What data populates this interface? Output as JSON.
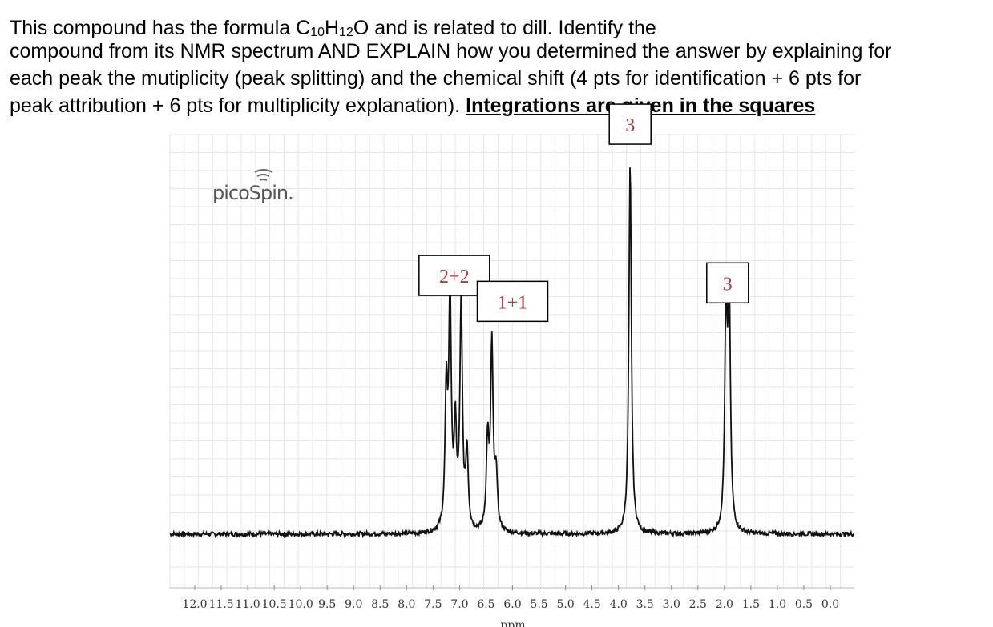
{
  "question": {
    "line1_a": "This compound has the formula C",
    "sub1": "10",
    "line1_b": "H",
    "sub2": "12",
    "line1_c": "O and is related to dill. Identify the",
    "line2": "compound from its NMR spectrum AND EXPLAIN how you determined the answer by explaining for",
    "line3": "each peak the mutiplicity (peak splitting) and the chemical shift (4 pts for identification + 6 pts for",
    "line4": "peak attribution + 6 pts for multiplicity explanation).",
    "emphasis": "Integrations are given in the squares"
  },
  "brand": "picoSpin.",
  "colors": {
    "trace": "#111111",
    "grid": "#e6e6e6",
    "integration_text": "#b03a3a",
    "box": "#000000"
  },
  "chart_data": {
    "type": "line",
    "title": "",
    "xlabel": "ppm",
    "ylabel": "",
    "x_reversed": true,
    "xlim": [
      12.0,
      0.0
    ],
    "ylim": [
      0,
      1.0
    ],
    "grid": true,
    "tick_labels": [
      "12.0",
      "11.5",
      "11.0",
      "10.5",
      "10.0",
      "9.5",
      "9.0",
      "8.5",
      "8.0",
      "7.5",
      "7.0",
      "6.5",
      "6.0",
      "5.5",
      "5.0",
      "4.5",
      "4.0",
      "3.5",
      "3.0",
      "2.5",
      "2.0",
      "1.5",
      "1.0",
      "0.5",
      "0.0"
    ],
    "baseline": 0.02,
    "peaks": [
      {
        "ppm": 7.25,
        "height": 0.36
      },
      {
        "ppm": 7.18,
        "height": 0.62
      },
      {
        "ppm": 7.08,
        "height": 0.26
      },
      {
        "ppm": 6.97,
        "height": 0.61
      },
      {
        "ppm": 6.86,
        "height": 0.21
      },
      {
        "ppm": 6.47,
        "height": 0.24
      },
      {
        "ppm": 6.39,
        "height": 0.5
      },
      {
        "ppm": 6.31,
        "height": 0.15
      },
      {
        "ppm": 3.78,
        "height": 1.0
      },
      {
        "ppm": 1.97,
        "height": 0.57
      },
      {
        "ppm": 1.91,
        "height": 0.62
      }
    ],
    "integrations": [
      {
        "label": "2+2",
        "ppm": 7.1,
        "level": 0.72
      },
      {
        "label": "1+1",
        "ppm": 6.0,
        "level": 0.65
      },
      {
        "label": "3",
        "ppm": 3.78,
        "level": 1.13
      },
      {
        "label": "3",
        "ppm": 1.94,
        "level": 0.7
      }
    ]
  }
}
